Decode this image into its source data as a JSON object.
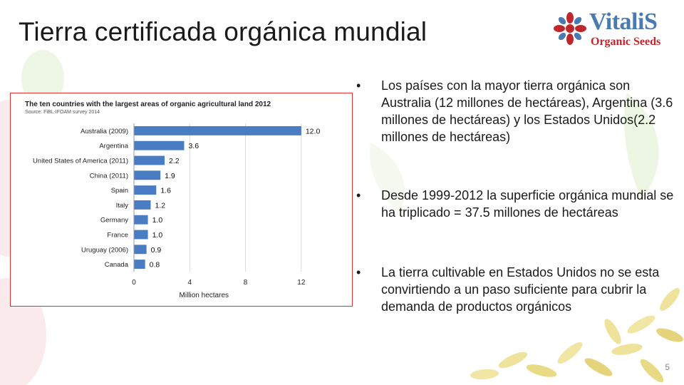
{
  "slide": {
    "title": "Tierra certificada orgánica mundial",
    "page_number": "5"
  },
  "logo": {
    "brand": "VitaliS",
    "tagline": "Organic Seeds"
  },
  "bullets": [
    "Los países con la mayor tierra orgánica son Australia (12 millones de hectáreas), Argentina (3.6 millones de hectáreas) y los Estados Unidos(2.2 millones de hectáreas)",
    "Desde 1999-2012 la superficie orgánica mundial se ha triplicado = 37.5 millones de hectáreas",
    "La tierra cultivable en Estados Unidos no se esta convirtiendo a un paso suficiente para cubrir la demanda de productos orgánicos"
  ],
  "chart_data": {
    "type": "bar",
    "orientation": "horizontal",
    "title": "The ten countries with the largest  areas of organic agricultural land 2012",
    "subtitle": "Source: FiBL-IFOAM survey 2014",
    "xlabel": "Million hectares",
    "ylabel": "",
    "xlim": [
      0,
      14
    ],
    "xticks": [
      0,
      4,
      8,
      12
    ],
    "grid": true,
    "bar_color": "#4a7cc4",
    "categories": [
      "Australia (2009)",
      "Argentina",
      "United States of America (2011)",
      "China (2011)",
      "Spain",
      "Italy",
      "Germany",
      "France",
      "Uruguay (2006)",
      "Canada"
    ],
    "values": [
      12.0,
      3.6,
      2.2,
      1.9,
      1.6,
      1.2,
      1.0,
      1.0,
      0.9,
      0.8
    ],
    "value_labels": [
      "12.0",
      "3.6",
      "2.2",
      "1.9",
      "1.6",
      "1.2",
      "1.0",
      "1.0",
      "0.9",
      "0.8"
    ]
  }
}
